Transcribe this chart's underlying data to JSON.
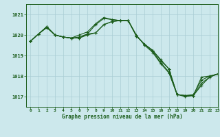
{
  "title": "Graphe pression niveau de la mer (hPa)",
  "bg_color": "#cce8ec",
  "grid_color": "#aacdd4",
  "line_color": "#1a5c1a",
  "marker_color": "#1a5c1a",
  "xlim": [
    -0.5,
    23
  ],
  "ylim": [
    1016.5,
    1021.5
  ],
  "yticks": [
    1017,
    1018,
    1019,
    1020,
    1021
  ],
  "xticks": [
    0,
    1,
    2,
    3,
    4,
    5,
    6,
    7,
    8,
    9,
    10,
    11,
    12,
    13,
    14,
    15,
    16,
    17,
    18,
    19,
    20,
    21,
    22,
    23
  ],
  "series": [
    [
      1019.7,
      1020.05,
      1020.4,
      1020.0,
      1019.9,
      1019.85,
      1019.85,
      1020.0,
      1020.1,
      1020.5,
      1020.65,
      1020.7,
      1020.7,
      1019.95,
      1019.55,
      1019.25,
      1018.8,
      1018.35,
      1017.1,
      1017.05,
      1017.1,
      1017.8,
      1018.0,
      1018.1
    ],
    [
      1019.7,
      1020.05,
      1020.4,
      1020.0,
      1019.9,
      1019.85,
      1019.85,
      1020.05,
      1020.5,
      1020.8,
      1020.75,
      1020.7,
      1020.7,
      1019.95,
      1019.55,
      1019.2,
      1018.65,
      1018.2,
      1017.1,
      1017.05,
      1017.05,
      1017.55,
      1017.95,
      1018.1
    ],
    [
      1019.7,
      1020.05,
      1020.35,
      1020.0,
      1019.9,
      1019.85,
      1019.9,
      1020.05,
      1020.1,
      1020.5,
      1020.65,
      1020.7,
      1020.7,
      1019.95,
      1019.55,
      1019.25,
      1018.75,
      1018.35,
      1017.1,
      1017.0,
      1017.05,
      1017.95,
      1018.0,
      1018.1
    ],
    [
      1019.7,
      1020.05,
      1020.4,
      1020.0,
      1019.9,
      1019.85,
      1020.0,
      1020.15,
      1020.55,
      1020.85,
      1020.75,
      1020.7,
      1020.7,
      1020.0,
      1019.5,
      1019.15,
      1018.6,
      1018.15,
      1017.1,
      1017.05,
      1017.05,
      1017.65,
      1017.95,
      1018.1
    ]
  ]
}
